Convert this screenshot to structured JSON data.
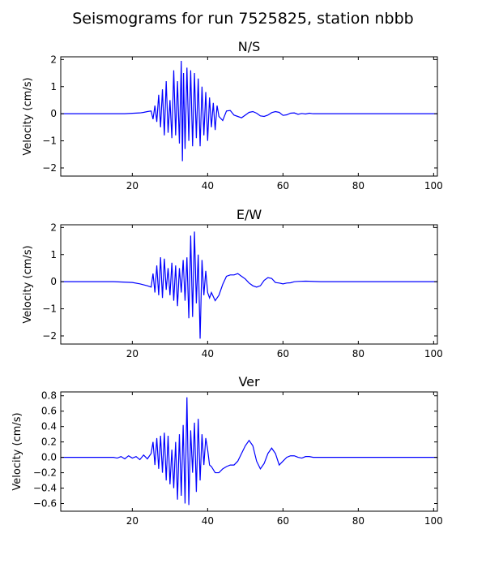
{
  "figure": {
    "title": "Seismograms for run 7525825, station nbbb"
  },
  "chart_data": [
    {
      "type": "line",
      "title": "N/S",
      "xlabel": "",
      "ylabel": "Velocity (cm/s)",
      "xlim": [
        1,
        101
      ],
      "ylim": [
        -2.3,
        2.1
      ],
      "xticks": [
        20,
        40,
        60,
        80,
        100
      ],
      "yticks": [
        -2,
        -1,
        0,
        1,
        2
      ],
      "grid": false,
      "series": [
        {
          "color": "#0000ff",
          "x": [
            1,
            18,
            22,
            23,
            24,
            25,
            25.5,
            26,
            26.5,
            27,
            27.5,
            28,
            28.5,
            29,
            29.5,
            30,
            30.5,
            31,
            31.5,
            32,
            32.5,
            33,
            33.3,
            33.6,
            34,
            34.5,
            35,
            35.5,
            36,
            36.5,
            37,
            37.5,
            38,
            38.5,
            39,
            39.5,
            40,
            40.5,
            41,
            41.5,
            42,
            42.5,
            43,
            44,
            45,
            46,
            47,
            48,
            49,
            50,
            51,
            52,
            53,
            54,
            55,
            56,
            57,
            58,
            59,
            60,
            61,
            62,
            63,
            64,
            65,
            66,
            67,
            68,
            70,
            101
          ],
          "y": [
            0,
            0,
            0.03,
            0.05,
            0.08,
            0.1,
            -0.2,
            0.3,
            -0.3,
            0.7,
            -0.5,
            0.9,
            -0.8,
            1.2,
            -0.7,
            0.5,
            -0.9,
            1.6,
            -0.8,
            1.2,
            -1.1,
            1.95,
            -1.75,
            1.5,
            -1.3,
            1.7,
            -1.0,
            1.6,
            -1.2,
            1.5,
            -0.9,
            1.3,
            -1.2,
            1.0,
            -0.8,
            0.8,
            -1.0,
            0.6,
            -0.5,
            0.4,
            -0.6,
            0.3,
            -0.1,
            -0.25,
            0.1,
            0.12,
            -0.05,
            -0.1,
            -0.15,
            -0.05,
            0.05,
            0.08,
            0.02,
            -0.08,
            -0.1,
            -0.05,
            0.04,
            0.08,
            0.05,
            -0.06,
            -0.04,
            0.02,
            0.03,
            -0.02,
            0.01,
            -0.01,
            0.02,
            0,
            0,
            0
          ]
        }
      ]
    },
    {
      "type": "line",
      "title": "E/W",
      "xlabel": "",
      "ylabel": "Velocity (cm/s)",
      "xlim": [
        1,
        101
      ],
      "ylim": [
        -2.3,
        2.1
      ],
      "xticks": [
        20,
        40,
        60,
        80,
        100
      ],
      "yticks": [
        -2,
        -1,
        0,
        1,
        2
      ],
      "grid": false,
      "series": [
        {
          "color": "#0000ff",
          "x": [
            1,
            15,
            20,
            22,
            24,
            25,
            25.5,
            26,
            26.5,
            27,
            27.5,
            28,
            28.5,
            29,
            29.5,
            30,
            30.5,
            31,
            31.5,
            32,
            32.5,
            33,
            33.5,
            34,
            34.5,
            35,
            35.5,
            36,
            36.5,
            37,
            37.5,
            38,
            38.5,
            39,
            39.5,
            40,
            40.5,
            41,
            42,
            43,
            44,
            45,
            46,
            47,
            48,
            49,
            50,
            51,
            52,
            53,
            54,
            55,
            56,
            57,
            58,
            59,
            60,
            61,
            62,
            63,
            64,
            66,
            70,
            101
          ],
          "y": [
            0,
            0,
            -0.03,
            -0.08,
            -0.15,
            -0.2,
            0.3,
            -0.4,
            0.6,
            -0.5,
            0.9,
            -0.6,
            0.85,
            -0.3,
            0.5,
            -0.5,
            0.7,
            -0.7,
            0.6,
            -0.9,
            0.5,
            -0.4,
            0.8,
            -0.7,
            0.9,
            -1.35,
            1.7,
            -1.3,
            1.85,
            -0.8,
            1.0,
            -2.1,
            0.8,
            -0.5,
            0.4,
            -0.4,
            -0.6,
            -0.4,
            -0.7,
            -0.5,
            -0.1,
            0.2,
            0.25,
            0.25,
            0.3,
            0.2,
            0.1,
            -0.05,
            -0.15,
            -0.2,
            -0.15,
            0.05,
            0.15,
            0.12,
            -0.03,
            -0.05,
            -0.08,
            -0.05,
            -0.04,
            0,
            0.01,
            0.02,
            0,
            0
          ]
        }
      ]
    },
    {
      "type": "line",
      "title": "Ver",
      "xlabel": "",
      "ylabel": "Velocity (cm/s)",
      "xlim": [
        1,
        101
      ],
      "ylim": [
        -0.7,
        0.85
      ],
      "xticks": [
        20,
        40,
        60,
        80,
        100
      ],
      "yticks": [
        -0.6,
        -0.4,
        -0.2,
        0.0,
        0.2,
        0.4,
        0.6,
        0.8
      ],
      "ytick_labels": [
        "−0.6",
        "−0.4",
        "−0.2",
        "0.0",
        "0.2",
        "0.4",
        "0.6",
        "0.8"
      ],
      "grid": false,
      "series": [
        {
          "color": "#0000ff",
          "x": [
            1,
            15,
            16,
            17,
            18,
            19,
            20,
            21,
            22,
            23,
            24,
            25,
            25.5,
            26,
            26.5,
            27,
            27.5,
            28,
            28.5,
            29,
            29.5,
            30,
            30.5,
            31,
            31.5,
            32,
            32.5,
            33,
            33.5,
            34,
            34.5,
            35,
            35.5,
            36,
            36.5,
            37,
            37.5,
            38,
            38.5,
            39,
            39.5,
            40,
            40.5,
            41,
            42,
            43,
            44,
            45,
            46,
            47,
            48,
            49,
            50,
            51,
            52,
            53,
            54,
            55,
            56,
            57,
            58,
            59,
            60,
            61,
            62,
            63,
            64,
            65,
            66,
            67,
            68,
            70,
            101
          ],
          "y": [
            0,
            0,
            -0.01,
            0.01,
            -0.02,
            0.02,
            -0.01,
            0.01,
            -0.03,
            0.03,
            -0.02,
            0.05,
            0.2,
            -0.1,
            0.25,
            -0.15,
            0.28,
            -0.2,
            0.32,
            -0.3,
            0.28,
            -0.35,
            0.1,
            -0.4,
            0.2,
            -0.55,
            0.3,
            -0.5,
            0.42,
            -0.6,
            0.78,
            -0.62,
            0.35,
            -0.2,
            0.45,
            -0.45,
            0.5,
            -0.3,
            0.3,
            -0.1,
            0.25,
            0.1,
            -0.1,
            -0.12,
            -0.2,
            -0.2,
            -0.15,
            -0.12,
            -0.1,
            -0.1,
            -0.05,
            0.05,
            0.15,
            0.22,
            0.15,
            -0.05,
            -0.15,
            -0.08,
            0.05,
            0.12,
            0.05,
            -0.1,
            -0.05,
            0.0,
            0.02,
            0.02,
            0.0,
            -0.01,
            0.01,
            0.01,
            0.0,
            0,
            0
          ]
        }
      ]
    }
  ]
}
